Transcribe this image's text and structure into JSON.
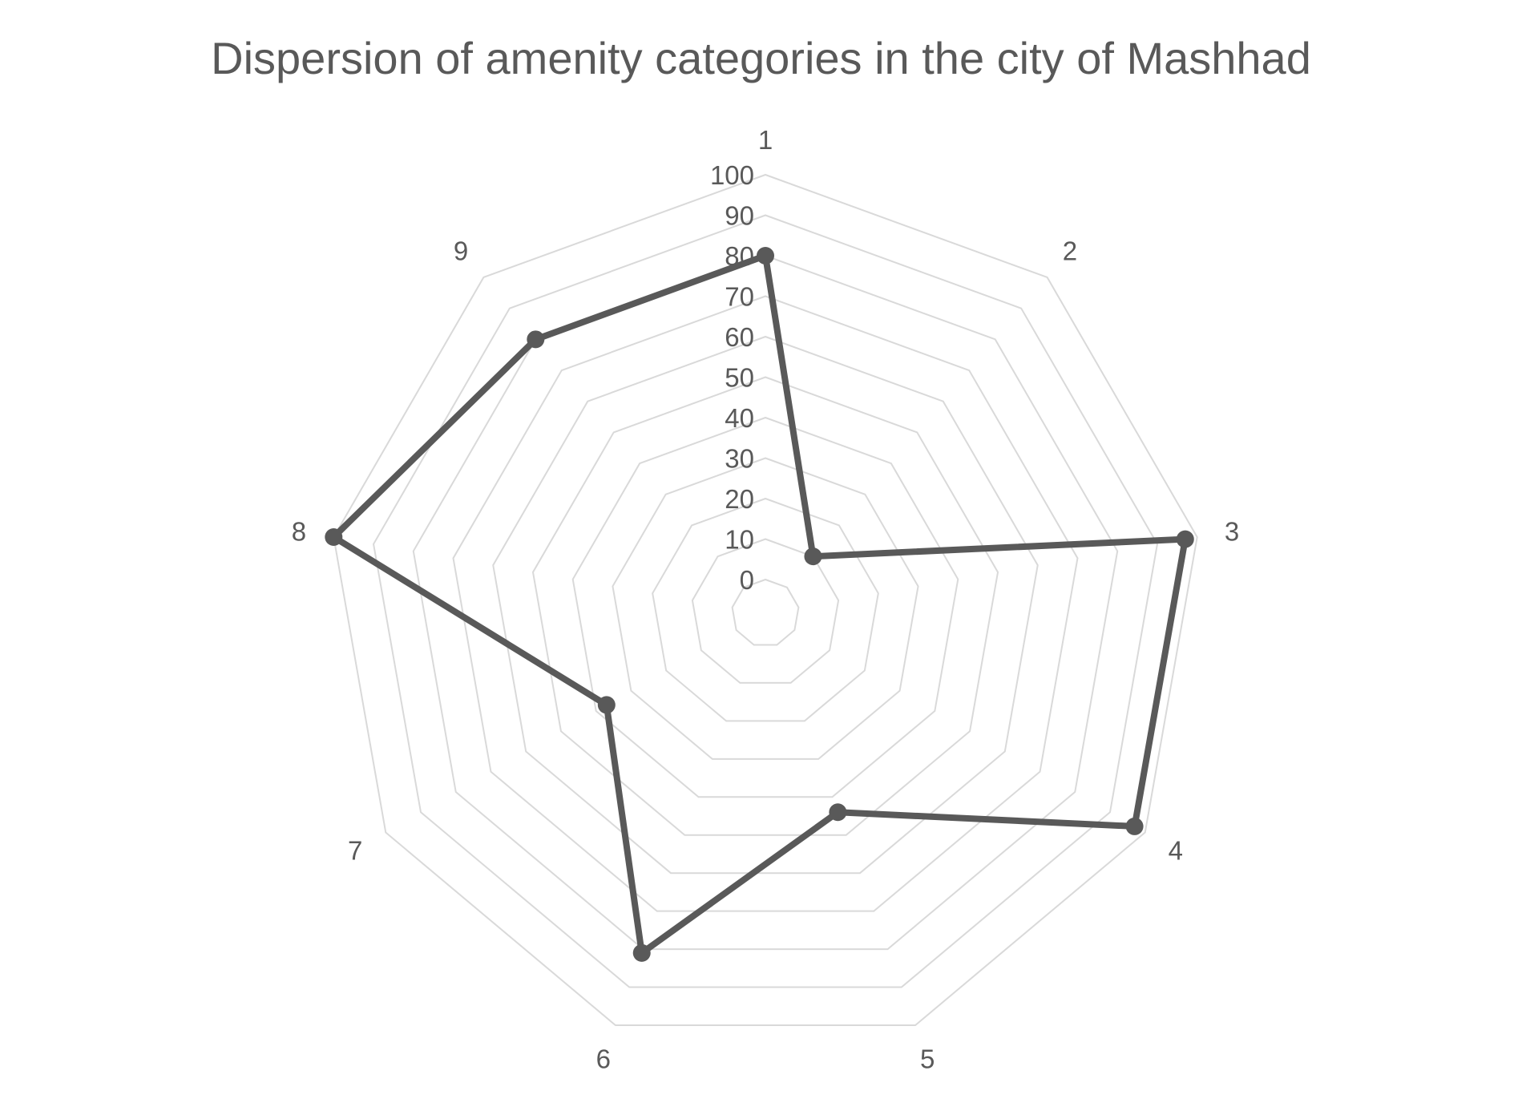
{
  "chart_data": {
    "type": "radar",
    "title": "Dispersion of amenity  categories in the city of Mashhad",
    "categories": [
      "1",
      "2",
      "3",
      "4",
      "5",
      "6",
      "7",
      "8",
      "9"
    ],
    "series": [
      {
        "values": [
          80,
          10,
          97,
          97,
          44,
          81,
          37,
          100,
          80
        ]
      }
    ],
    "radial_ticks": [
      "0",
      "10",
      "20",
      "30",
      "40",
      "50",
      "60",
      "70",
      "80",
      "90",
      "100"
    ],
    "rlim": [
      0,
      100
    ],
    "grid": true,
    "legend": "none",
    "colors": {
      "series": "#595959",
      "grid": "#d9d9d9",
      "text": "#595959"
    }
  }
}
